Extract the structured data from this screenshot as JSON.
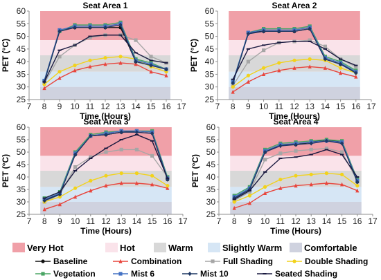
{
  "zones": [
    {
      "key": "very_hot",
      "label": "Very Hot",
      "color": "#f0a0a8",
      "range": [
        48.5,
        60
      ]
    },
    {
      "key": "hot",
      "label": "Hot",
      "color": "#fae3ea",
      "range": [
        42.5,
        48.5
      ]
    },
    {
      "key": "warm",
      "label": "Warm",
      "color": "#d8d8d8",
      "range": [
        36,
        42.5
      ]
    },
    {
      "key": "slightly_warm",
      "label": "Slightly Warm",
      "color": "#d6e6f5",
      "range": [
        30,
        36
      ]
    },
    {
      "key": "comfortable",
      "label": "Comfortable",
      "color": "#cfd2df",
      "range": [
        25,
        30
      ]
    }
  ],
  "series_style": [
    {
      "name": "Baseline",
      "color": "#111111",
      "marker": "circle"
    },
    {
      "name": "Combination",
      "color": "#e8453c",
      "marker": "triangle"
    },
    {
      "name": "Full Shading",
      "color": "#a6a6a6",
      "marker": "square"
    },
    {
      "name": "Double Shading",
      "color": "#f2d21b",
      "marker": "circle"
    },
    {
      "name": "Vegetation",
      "color": "#4aa564",
      "marker": "square"
    },
    {
      "name": "Mist 6",
      "color": "#4472c4",
      "marker": "square"
    },
    {
      "name": "Mist 10",
      "color": "#1f3864",
      "marker": "diamond"
    },
    {
      "name": "Seated Shading",
      "color": "#1a1a40",
      "marker": "dash"
    }
  ],
  "chart_data": [
    {
      "type": "line",
      "title": "Seat Area 1",
      "xlabel": "Time (Hours)",
      "ylabel": "PET (°C)",
      "xlim": [
        7,
        17
      ],
      "ylim": [
        25,
        60
      ],
      "xticks": [
        7,
        8,
        9,
        10,
        11,
        12,
        13,
        14,
        15,
        16,
        17
      ],
      "yticks": [
        25,
        30,
        35,
        40,
        45,
        50,
        55,
        60
      ],
      "x": [
        8,
        9,
        10,
        11,
        12,
        13,
        14,
        15,
        16
      ],
      "series": [
        {
          "name": "Baseline",
          "values": [
            32.5,
            52.5,
            53.5,
            53.5,
            53.5,
            53.5,
            40,
            38.5,
            37
          ]
        },
        {
          "name": "Combination",
          "values": [
            29.5,
            33.5,
            36.5,
            38,
            39,
            39.5,
            39,
            36,
            34.5
          ]
        },
        {
          "name": "Full Shading",
          "values": [
            31.5,
            42,
            46.5,
            49.5,
            50.5,
            50.5,
            48.5,
            42,
            39.5
          ]
        },
        {
          "name": "Double Shading",
          "values": [
            31,
            36,
            38.5,
            40.5,
            41.5,
            42,
            41,
            38,
            36
          ]
        },
        {
          "name": "Vegetation",
          "values": [
            32.5,
            52,
            54.5,
            54.5,
            54.5,
            55.5,
            41,
            39.5,
            37
          ]
        },
        {
          "name": "Mist 6",
          "values": [
            32.5,
            52.5,
            54,
            54,
            54,
            55,
            40.5,
            39,
            37
          ]
        },
        {
          "name": "Mist 10",
          "values": [
            32,
            52,
            53.5,
            53.5,
            53.5,
            54.5,
            40,
            38.5,
            37
          ]
        },
        {
          "name": "Seated Shading",
          "values": [
            32,
            44.5,
            46.5,
            50,
            50.5,
            50.5,
            43.5,
            40.5,
            39.5
          ]
        }
      ]
    },
    {
      "type": "line",
      "title": "Seat Area 2",
      "xlabel": "Time (Hours)",
      "ylabel": "PET (°C)",
      "xlim": [
        7,
        17
      ],
      "ylim": [
        25,
        60
      ],
      "xticks": [
        7,
        8,
        9,
        10,
        11,
        12,
        13,
        14,
        15,
        16,
        17
      ],
      "yticks": [
        25,
        30,
        35,
        40,
        45,
        50,
        55,
        60
      ],
      "x": [
        8,
        9,
        10,
        11,
        12,
        13,
        14,
        15,
        16
      ],
      "series": [
        {
          "name": "Baseline",
          "values": [
            31.5,
            51.5,
            52,
            52,
            52,
            53,
            41,
            39,
            36
          ]
        },
        {
          "name": "Combination",
          "values": [
            28,
            32,
            35,
            36.5,
            37.5,
            38,
            37.5,
            35.5,
            34
          ]
        },
        {
          "name": "Full Shading",
          "values": [
            30.5,
            40,
            44.5,
            47.5,
            48,
            48.5,
            46,
            41,
            38
          ]
        },
        {
          "name": "Double Shading",
          "values": [
            30,
            34.5,
            37.5,
            39.5,
            40.5,
            41,
            40.5,
            37.5,
            35.5
          ]
        },
        {
          "name": "Vegetation",
          "values": [
            32,
            51.5,
            53,
            53,
            53,
            54,
            42,
            40,
            36.5
          ]
        },
        {
          "name": "Mist 6",
          "values": [
            32,
            51.5,
            52.5,
            52.5,
            52.5,
            53.5,
            41.5,
            39.5,
            36
          ]
        },
        {
          "name": "Mist 10",
          "values": [
            31.5,
            51,
            52,
            52,
            52,
            53,
            41,
            39,
            35.5
          ]
        },
        {
          "name": "Seated Shading",
          "values": [
            33,
            45,
            46.5,
            47.5,
            48,
            48,
            45,
            41,
            38.5
          ]
        }
      ]
    },
    {
      "type": "line",
      "title": "Seat Area 3",
      "xlabel": "Time (Hours)",
      "ylabel": "PET (°C)",
      "xlim": [
        7,
        17
      ],
      "ylim": [
        25,
        60
      ],
      "xticks": [
        7,
        8,
        9,
        10,
        11,
        12,
        13,
        14,
        15,
        16,
        17
      ],
      "yticks": [
        25,
        30,
        35,
        40,
        45,
        50,
        55,
        60
      ],
      "x": [
        8,
        9,
        10,
        11,
        12,
        13,
        14,
        15,
        16
      ],
      "series": [
        {
          "name": "Baseline",
          "values": [
            30.5,
            33.5,
            49,
            56.5,
            57,
            58,
            58.5,
            58,
            39
          ]
        },
        {
          "name": "Combination",
          "values": [
            27,
            29,
            32,
            34.5,
            36.5,
            37.5,
            37.5,
            37,
            35.5
          ]
        },
        {
          "name": "Full Shading",
          "values": [
            30,
            33,
            44,
            48,
            50,
            51,
            51,
            48.5,
            40
          ]
        },
        {
          "name": "Double Shading",
          "values": [
            30,
            32,
            35.5,
            38.5,
            40.5,
            41.5,
            41.5,
            40.5,
            36.5
          ]
        },
        {
          "name": "Vegetation",
          "values": [
            31.5,
            34,
            50,
            57,
            58,
            58.5,
            58.5,
            58.5,
            40
          ]
        },
        {
          "name": "Mist 6",
          "values": [
            31,
            33.5,
            49.5,
            56.5,
            57.5,
            58.5,
            58.5,
            58,
            39.5
          ]
        },
        {
          "name": "Mist 10",
          "values": [
            30.5,
            33,
            49,
            56.5,
            57,
            58,
            58,
            57.5,
            39
          ]
        },
        {
          "name": "Seated Shading",
          "values": [
            31.5,
            34,
            42.5,
            47.5,
            51.5,
            55,
            57,
            54.5,
            39.5
          ]
        }
      ]
    },
    {
      "type": "line",
      "title": "Seat Area 4",
      "xlabel": "Time (Hours)",
      "ylabel": "PET (°C)",
      "xlim": [
        7,
        17
      ],
      "ylim": [
        25,
        60
      ],
      "xticks": [
        7,
        8,
        9,
        10,
        11,
        12,
        13,
        14,
        15,
        16,
        17
      ],
      "yticks": [
        25,
        30,
        35,
        40,
        45,
        50,
        55,
        60
      ],
      "x": [
        8,
        9,
        10,
        11,
        12,
        13,
        14,
        15,
        16
      ],
      "series": [
        {
          "name": "Baseline",
          "values": [
            31.5,
            35,
            50,
            53,
            53,
            54,
            55,
            54,
            38
          ]
        },
        {
          "name": "Combination",
          "values": [
            27.5,
            29.5,
            33.5,
            35.5,
            36.5,
            37,
            37.5,
            37,
            34.5
          ]
        },
        {
          "name": "Full Shading",
          "values": [
            30.5,
            34,
            47,
            49.5,
            50.5,
            51,
            51.5,
            50,
            38.5
          ]
        },
        {
          "name": "Double Shading",
          "values": [
            30,
            32.5,
            36,
            39,
            40.5,
            41,
            41.5,
            41,
            36.5
          ]
        },
        {
          "name": "Vegetation",
          "values": [
            32.5,
            36,
            51,
            53.5,
            54,
            54.5,
            55,
            54.5,
            39
          ]
        },
        {
          "name": "Mist 6",
          "values": [
            32,
            35.5,
            50.5,
            53,
            53.5,
            54,
            54.5,
            54,
            38.5
          ]
        },
        {
          "name": "Mist 10",
          "values": [
            31.5,
            35,
            50,
            52.5,
            53,
            53.5,
            54.5,
            53.5,
            38
          ]
        },
        {
          "name": "Seated Shading",
          "values": [
            31,
            34.5,
            42,
            47.5,
            48,
            49,
            51,
            49,
            40
          ]
        }
      ]
    }
  ]
}
